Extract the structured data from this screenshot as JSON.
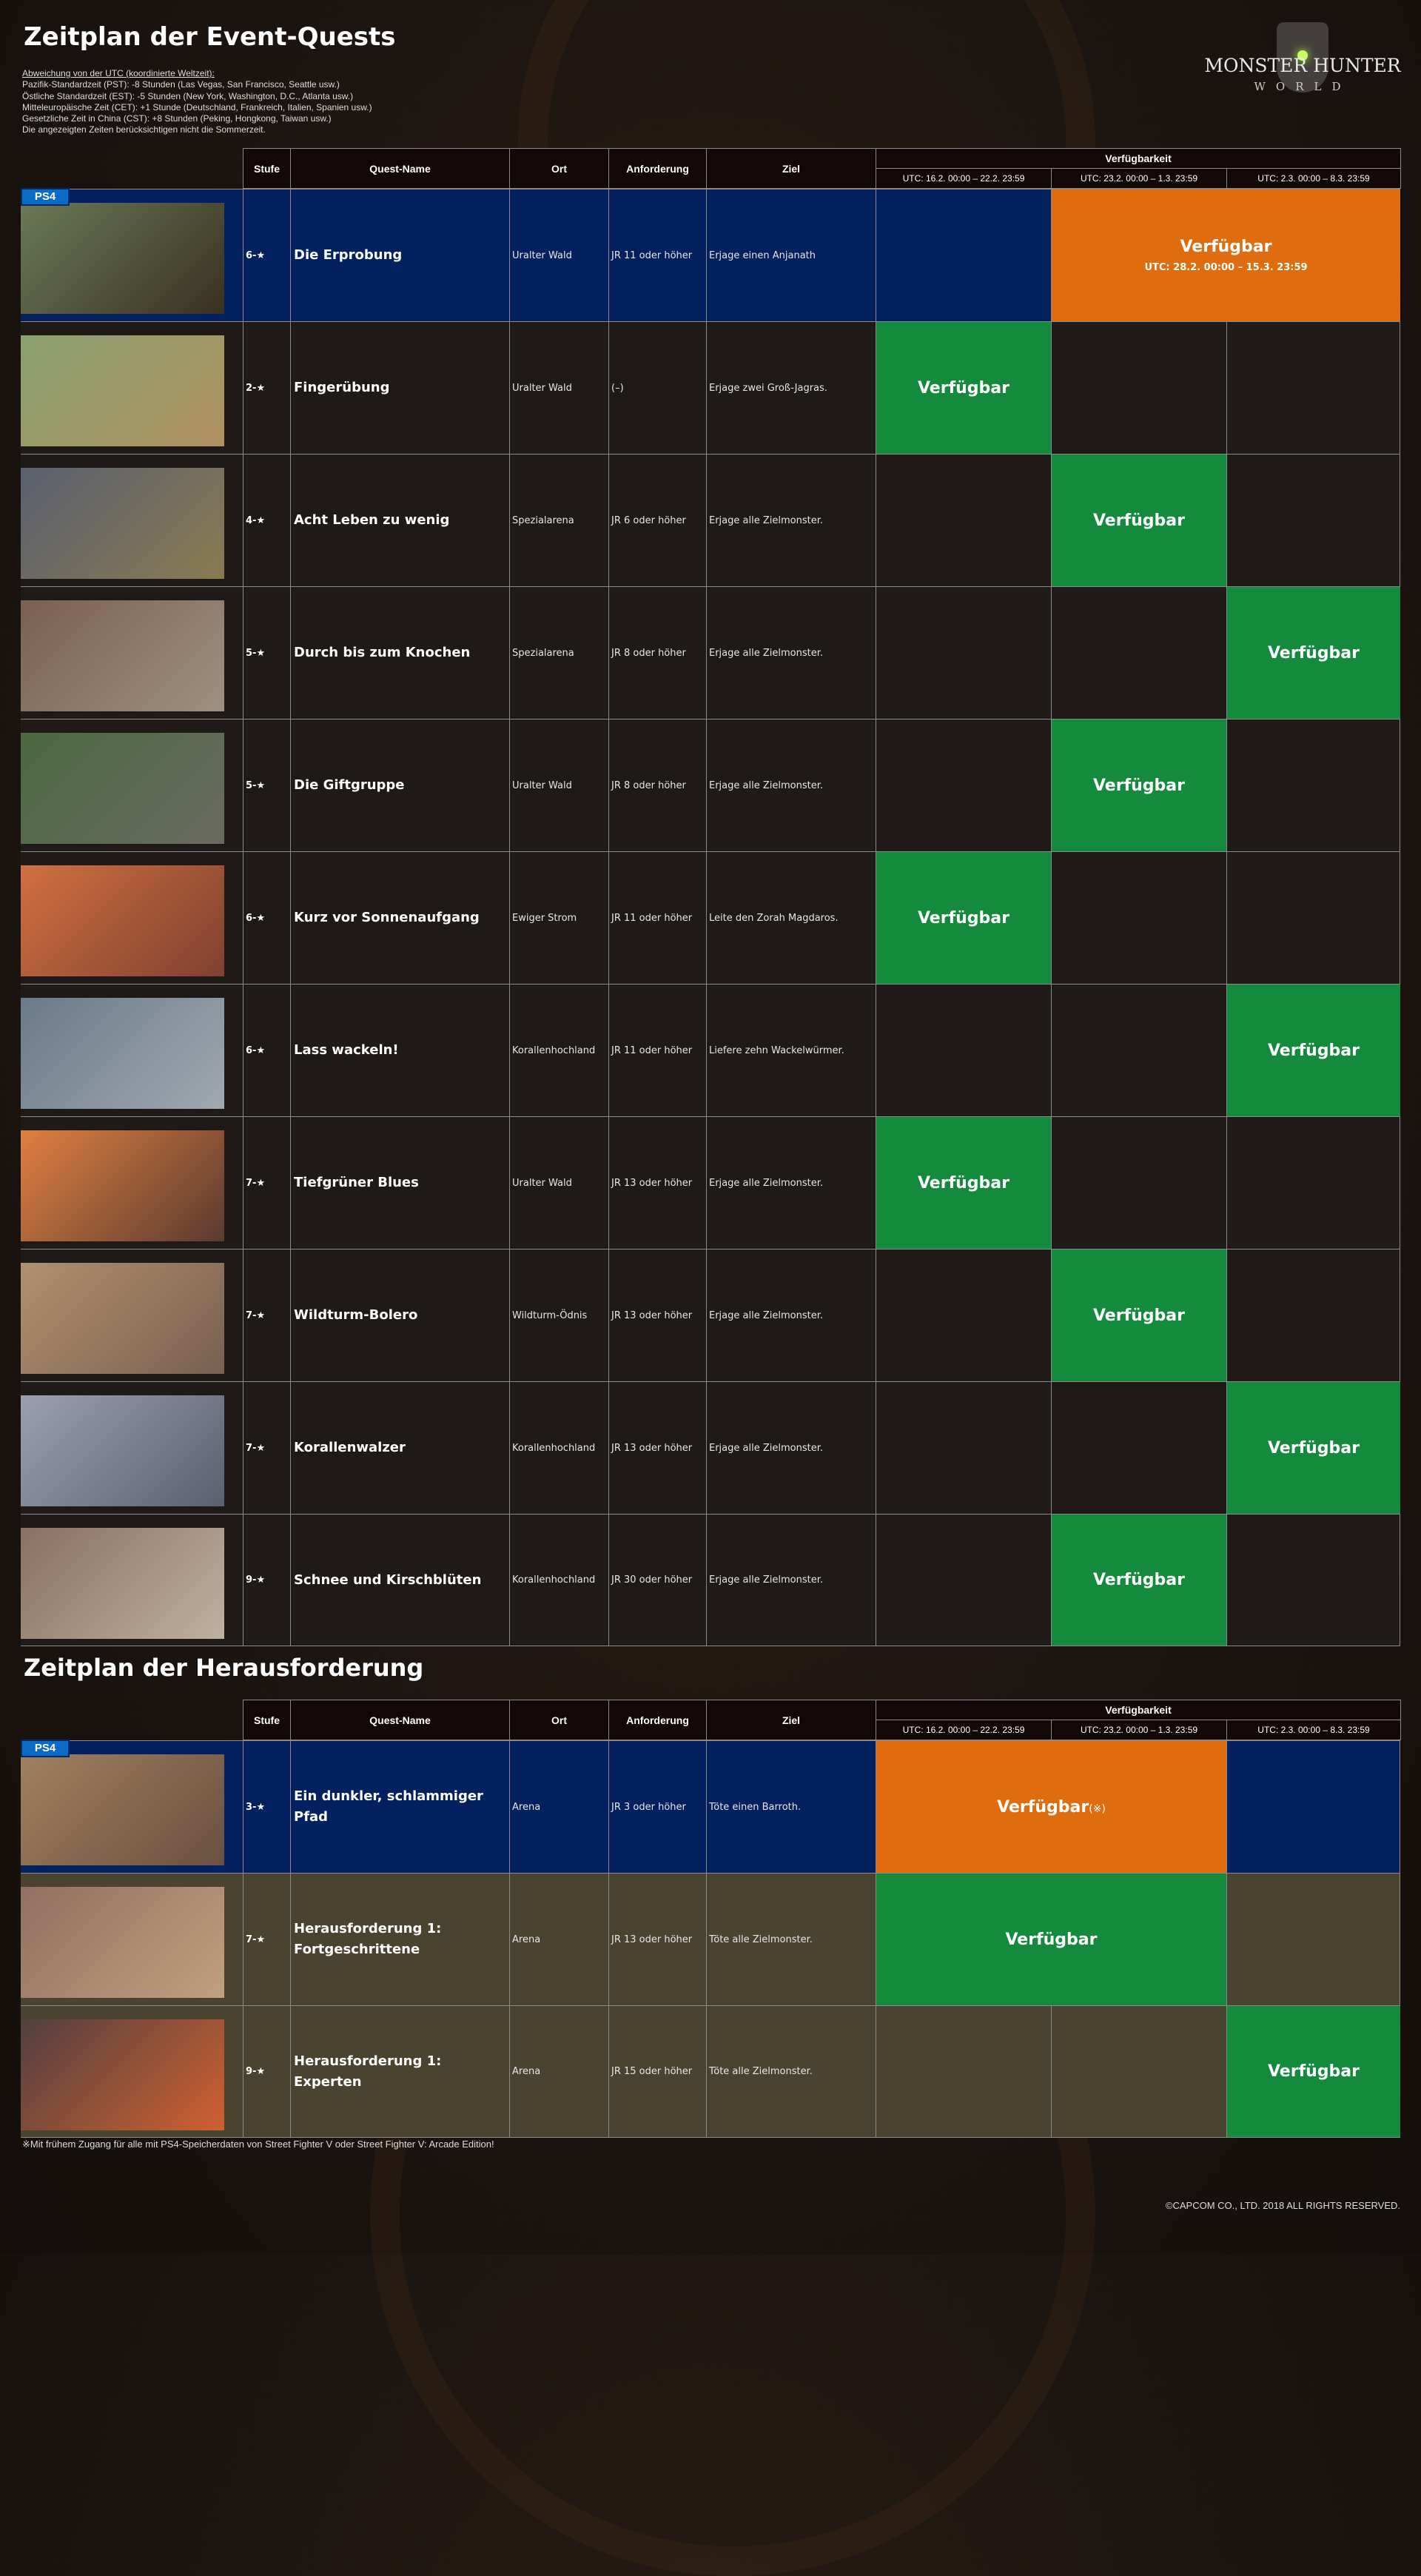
{
  "logo": {
    "line1": "MONSTER HUNTER",
    "line2": "WORLD"
  },
  "event": {
    "title": "Zeitplan der Event-Quests",
    "notes": [
      "Abweichung von der UTC (koordinierte Weltzeit):",
      "Pazifik-Standardzeit (PST): -8 Stunden (Las Vegas, San Francisco, Seattle usw.)",
      "Östliche Standardzeit (EST): -5 Stunden (New York, Washington, D.C., Atlanta usw.)",
      "Mitteleuropäische Zeit (CET): +1 Stunde (Deutschland, Frankreich, Italien, Spanien usw.)",
      "Gesetzliche Zeit in China (CST): +8 Stunden (Peking, Hongkong, Taiwan usw.)",
      "Die angezeigten Zeiten berücksichtigen nicht die Sommerzeit."
    ],
    "quests": [
      {
        "platform": "PS4",
        "theme": "ps4",
        "stufe": "6-★",
        "name": "Die Erprobung",
        "ort": "Uralter Wald",
        "anforderung": "JR 11 oder höher",
        "ziel": "Erjage einen Anjanath",
        "available_periods": [
          2,
          3
        ],
        "label": "Verfügbar",
        "sub": "UTC: 28.2. 00:00 – 15.3. 23:59",
        "status_color": "orange"
      },
      {
        "platform": "",
        "theme": "normal",
        "stufe": "2-★",
        "name": "Fingerübung",
        "ort": "Uralter Wald",
        "anforderung": "(–)",
        "ziel": "Erjage zwei Groß-Jagras.",
        "available_periods": [
          1
        ],
        "label": "Verfügbar",
        "status_color": "green"
      },
      {
        "platform": "",
        "theme": "normal",
        "stufe": "4-★",
        "name": "Acht Leben zu wenig",
        "ort": "Spezialarena",
        "anforderung": "JR 6 oder höher",
        "ziel": "Erjage alle Zielmonster.",
        "available_periods": [
          2
        ],
        "label": "Verfügbar",
        "status_color": "green"
      },
      {
        "platform": "",
        "theme": "normal",
        "stufe": "5-★",
        "name": "Durch bis zum Knochen",
        "ort": "Spezialarena",
        "anforderung": "JR 8 oder höher",
        "ziel": "Erjage alle Zielmonster.",
        "available_periods": [
          3
        ],
        "label": "Verfügbar",
        "status_color": "green"
      },
      {
        "platform": "",
        "theme": "normal",
        "stufe": "5-★",
        "name": "Die Giftgruppe",
        "ort": "Uralter Wald",
        "anforderung": "JR 8 oder höher",
        "ziel": "Erjage alle Zielmonster.",
        "available_periods": [
          2
        ],
        "label": "Verfügbar",
        "status_color": "green"
      },
      {
        "platform": "",
        "theme": "normal",
        "stufe": "6-★",
        "name": "Kurz vor Sonnenaufgang",
        "ort": "Ewiger Strom",
        "anforderung": "JR 11 oder höher",
        "ziel": "Leite den Zorah Magdaros.",
        "available_periods": [
          1
        ],
        "label": "Verfügbar",
        "status_color": "green"
      },
      {
        "platform": "",
        "theme": "normal",
        "stufe": "6-★",
        "name": "Lass wackeln!",
        "ort": "Korallenhochland",
        "anforderung": "JR 11 oder höher",
        "ziel": "Liefere zehn Wackelwürmer.",
        "available_periods": [
          3
        ],
        "label": "Verfügbar",
        "status_color": "green"
      },
      {
        "platform": "",
        "theme": "normal",
        "stufe": "7-★",
        "name": "Tiefgrüner Blues",
        "ort": "Uralter Wald",
        "anforderung": "JR 13 oder höher",
        "ziel": "Erjage alle Zielmonster.",
        "available_periods": [
          1
        ],
        "label": "Verfügbar",
        "status_color": "green"
      },
      {
        "platform": "",
        "theme": "normal",
        "stufe": "7-★",
        "name": "Wildturm-Bolero",
        "ort": "Wildturm-Ödnis",
        "anforderung": "JR 13 oder höher",
        "ziel": "Erjage alle Zielmonster.",
        "available_periods": [
          2
        ],
        "label": "Verfügbar",
        "status_color": "green"
      },
      {
        "platform": "",
        "theme": "normal",
        "stufe": "7-★",
        "name": "Korallenwalzer",
        "ort": "Korallenhochland",
        "anforderung": "JR 13 oder höher",
        "ziel": "Erjage alle Zielmonster.",
        "available_periods": [
          3
        ],
        "label": "Verfügbar",
        "status_color": "green"
      },
      {
        "platform": "",
        "theme": "normal",
        "stufe": "9-★",
        "name": "Schnee und Kirschblüten",
        "ort": "Korallenhochland",
        "anforderung": "JR 30 oder höher",
        "ziel": "Erjage alle Zielmonster.",
        "available_periods": [
          2
        ],
        "label": "Verfügbar",
        "status_color": "green"
      }
    ]
  },
  "challenge": {
    "title": "Zeitplan der Herausforderung",
    "quests": [
      {
        "platform": "PS4",
        "theme": "ps4",
        "stufe": "3-★",
        "name": "Ein dunkler, schlammiger Pfad",
        "ort": "Arena",
        "anforderung": "JR 3 oder höher",
        "ziel": "Töte einen Barroth.",
        "available_periods": [
          1,
          2
        ],
        "label": "Verfügbar",
        "mark": "(※)",
        "status_color": "orange"
      },
      {
        "platform": "",
        "theme": "olive",
        "stufe": "7-★",
        "name": "Herausforderung 1: Fortgeschrittene",
        "ort": "Arena",
        "anforderung": "JR 13 oder höher",
        "ziel": "Töte alle Zielmonster.",
        "available_periods": [
          1,
          2
        ],
        "label": "Verfügbar",
        "status_color": "green"
      },
      {
        "platform": "",
        "theme": "olive",
        "stufe": "9-★",
        "name": "Herausforderung 1: Experten",
        "ort": "Arena",
        "anforderung": "JR 15 oder höher",
        "ziel": "Töte alle Zielmonster.",
        "available_periods": [
          3
        ],
        "label": "Verfügbar",
        "status_color": "green"
      }
    ],
    "footnote": "※Mit frühem Zugang für alle mit PS4-Speicherdaten von Street Fighter V oder Street Fighter V: Arcade Edition!"
  },
  "columns": {
    "stufe": "Stufe",
    "name": "Quest-Name",
    "ort": "Ort",
    "anforderung": "Anforderung",
    "ziel": "Ziel",
    "availability": "Verfügbarkeit",
    "periods": [
      "UTC: 16.2. 00:00 – 22.2. 23:59",
      "UTC: 23.2. 00:00 – 1.3. 23:59",
      "UTC: 2.3. 00:00 – 8.3. 23:59"
    ]
  },
  "colors": {
    "green": "#138a3c",
    "orange": "#e06c10",
    "ps4": "#03215e",
    "normal": "#1f1a18",
    "olive": "#4a4330",
    "ps4_badge": "#0a6ac8"
  },
  "copyright": "©CAPCOM CO., LTD. 2018 ALL RIGHTS RESERVED."
}
